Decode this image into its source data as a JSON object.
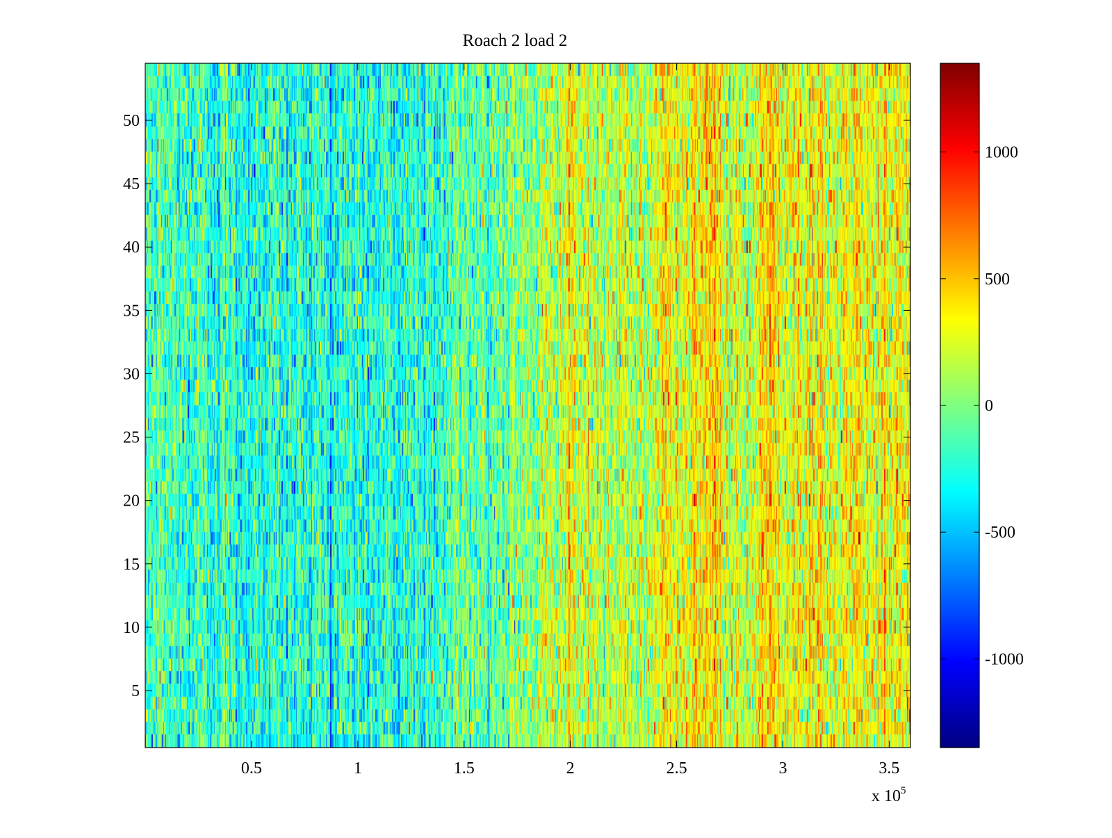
{
  "chart_data": {
    "type": "heatmap",
    "title": "Roach 2 load 2",
    "xlabel": "",
    "ylabel": "",
    "xlim": [
      0,
      360000
    ],
    "ylim": [
      0.5,
      54.5
    ],
    "x_ticks": [
      50000,
      100000,
      150000,
      200000,
      250000,
      300000,
      350000
    ],
    "x_tick_labels": [
      "0.5",
      "1",
      "1.5",
      "2",
      "2.5",
      "3",
      "3.5"
    ],
    "x_exponent_label": "x 10",
    "x_exponent_power": "5",
    "y_ticks": [
      5,
      10,
      15,
      20,
      25,
      30,
      35,
      40,
      45,
      50
    ],
    "y_tick_labels": [
      "5",
      "10",
      "15",
      "20",
      "25",
      "30",
      "35",
      "40",
      "45",
      "50"
    ],
    "rows": 54,
    "colormap": "jet",
    "clim": [
      -1350,
      1350
    ],
    "colorbar": {
      "ticks": [
        -1000,
        -500,
        0,
        500,
        1000
      ],
      "tick_labels": [
        "-1000",
        "-500",
        "0",
        "500",
        "1000"
      ]
    },
    "column_profile": {
      "x": [
        0,
        20000,
        50000,
        80000,
        100000,
        120000,
        140000,
        150000,
        165000,
        185000,
        200000,
        215000,
        235000,
        245000,
        255000,
        265000,
        275000,
        285000,
        290000,
        300000,
        315000,
        330000,
        345000,
        360000
      ],
      "mean": [
        -100,
        -200,
        -230,
        -250,
        -260,
        -270,
        -180,
        -100,
        -40,
        50,
        250,
        120,
        120,
        330,
        380,
        420,
        220,
        160,
        430,
        330,
        290,
        250,
        310,
        280
      ]
    },
    "noise_std": 230
  }
}
